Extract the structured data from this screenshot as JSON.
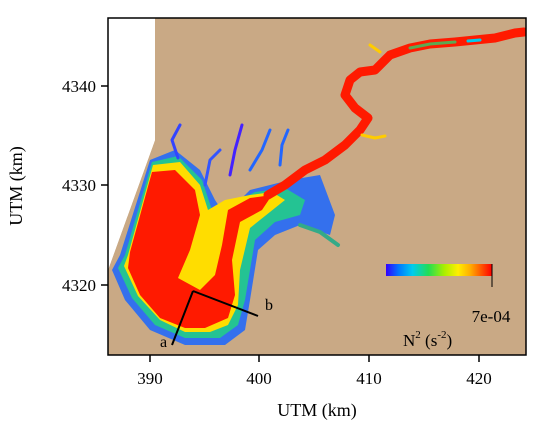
{
  "map": {
    "x_axis": {
      "title": "UTM (km)",
      "ticks": [
        "390",
        "400",
        "410",
        "420"
      ]
    },
    "y_axis": {
      "title": "UTM (km)",
      "ticks": [
        "4320",
        "4330",
        "4340"
      ]
    },
    "section_line": {
      "start_label": "a",
      "end_label": "b"
    },
    "colorbar": {
      "max_label": "7e-04",
      "title_base": "N",
      "title_exp": "2",
      "title_unit_open": " (s",
      "title_unit_exp": "-2",
      "title_unit_close": ")",
      "colors": [
        "#3300ff",
        "#0077ff",
        "#00ccee",
        "#22dd55",
        "#aaee00",
        "#ffee00",
        "#ffaa00",
        "#ff5500",
        "#ff0000"
      ]
    },
    "colors": {
      "land": "#c9a985",
      "high_stratification": "#ff1a00",
      "frame": "#000000"
    }
  }
}
